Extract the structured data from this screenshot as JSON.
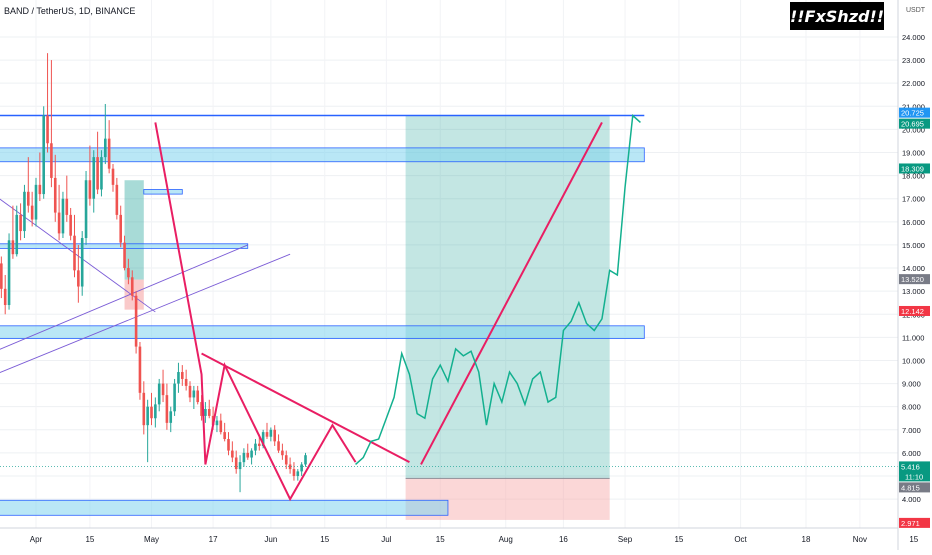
{
  "header": {
    "symbol_line": "BAND / TetherUS, 1D, BINANCE",
    "badge": "!!FxShzd!!",
    "currency": "USDT"
  },
  "colors": {
    "up": "#26a69a",
    "down": "#ef5350",
    "zone_fill": "#7fd3ee",
    "zone_stroke": "#2962ff",
    "pattern": "#e91e63",
    "projection": "#13b08f",
    "channel": "#7b5cd6",
    "level": "#2962ff"
  },
  "chart_data": {
    "type": "candlestick",
    "title": "BAND / TetherUS, 1D, BINANCE",
    "y_axis": {
      "unit": "USDT",
      "ticks": [
        4,
        5,
        6,
        7,
        8,
        9,
        10,
        11,
        12,
        13,
        14,
        15,
        16,
        17,
        18,
        19,
        20,
        21,
        22,
        23,
        24
      ],
      "tick_labels": [
        "4.000",
        "5.000",
        "6.000",
        "7.000",
        "8.000",
        "9.000",
        "10.000",
        "11.000",
        "12.000",
        "13.000",
        "14.000",
        "15.000",
        "16.000",
        "17.000",
        "18.000",
        "19.000",
        "20.000",
        "21.000",
        "22.000",
        "23.000",
        "24.000"
      ],
      "range": [
        2.75,
        25.6
      ]
    },
    "x_axis": {
      "labels": [
        "Apr",
        "15",
        "May",
        "17",
        "Jun",
        "15",
        "Jul",
        "15",
        "Aug",
        "16",
        "Sep",
        "15",
        "Oct",
        "18",
        "Nov",
        "15"
      ],
      "label_day_index": [
        0,
        14,
        30,
        46,
        61,
        75,
        91,
        105,
        122,
        137,
        153,
        167,
        183,
        200,
        214,
        228
      ]
    },
    "candles": [
      [
        10.8,
        11.5,
        10.7,
        11.3
      ],
      [
        11.3,
        13.2,
        11.0,
        12.8
      ],
      [
        12.8,
        14.6,
        12.5,
        14.2
      ],
      [
        14.2,
        14.5,
        12.7,
        13.1
      ],
      [
        13.1,
        13.7,
        12.0,
        12.4
      ],
      [
        12.4,
        15.5,
        12.2,
        15.2
      ],
      [
        15.2,
        16.7,
        14.4,
        14.6
      ],
      [
        14.6,
        16.7,
        14.5,
        16.3
      ],
      [
        16.3,
        16.8,
        15.2,
        15.6
      ],
      [
        15.6,
        17.6,
        15.3,
        17.3
      ],
      [
        17.3,
        18.8,
        16.4,
        16.7
      ],
      [
        16.7,
        17.3,
        15.8,
        16.1
      ],
      [
        16.1,
        17.9,
        15.8,
        17.6
      ],
      [
        17.6,
        19.0,
        16.9,
        17.2
      ],
      [
        17.2,
        21.0,
        17.0,
        20.6
      ],
      [
        20.6,
        23.3,
        19.0,
        19.4
      ],
      [
        19.4,
        23.0,
        17.5,
        17.9
      ],
      [
        17.9,
        18.9,
        16.0,
        16.4
      ],
      [
        16.4,
        17.6,
        15.2,
        15.5
      ],
      [
        15.5,
        17.3,
        15.3,
        17.0
      ],
      [
        17.0,
        18.0,
        16.0,
        16.3
      ],
      [
        16.3,
        16.6,
        15.2,
        15.4
      ],
      [
        15.4,
        16.3,
        13.6,
        13.9
      ],
      [
        13.9,
        15.0,
        12.5,
        13.2
      ],
      [
        13.2,
        15.6,
        12.8,
        15.3
      ],
      [
        15.3,
        18.2,
        15.0,
        17.8
      ],
      [
        17.8,
        19.3,
        16.7,
        17.0
      ],
      [
        17.0,
        19.1,
        16.4,
        18.8
      ],
      [
        18.8,
        19.9,
        17.2,
        17.4
      ],
      [
        17.4,
        19.1,
        17.1,
        18.8
      ],
      [
        18.8,
        21.1,
        18.5,
        19.6
      ],
      [
        19.6,
        20.4,
        18.1,
        18.3
      ],
      [
        18.3,
        18.5,
        17.3,
        17.6
      ],
      [
        17.6,
        17.9,
        16.1,
        16.3
      ],
      [
        16.3,
        16.7,
        14.9,
        15.1
      ],
      [
        15.1,
        15.4,
        13.9,
        14.0
      ],
      [
        14.0,
        14.4,
        13.3,
        13.6
      ],
      [
        13.6,
        13.9,
        12.6,
        12.8
      ],
      [
        12.8,
        13.0,
        10.3,
        10.6
      ],
      [
        10.6,
        10.8,
        8.3,
        8.6
      ],
      [
        8.6,
        9.1,
        6.8,
        7.2
      ],
      [
        7.2,
        8.3,
        5.6,
        8.0
      ],
      [
        8.0,
        8.6,
        7.2,
        7.5
      ],
      [
        7.5,
        8.4,
        7.1,
        8.1
      ],
      [
        8.1,
        9.2,
        7.8,
        9.0
      ],
      [
        9.0,
        9.6,
        8.2,
        8.5
      ],
      [
        8.5,
        9.0,
        7.0,
        7.3
      ],
      [
        7.3,
        8.0,
        6.9,
        7.8
      ],
      [
        7.8,
        9.2,
        7.6,
        9.0
      ],
      [
        9.0,
        9.9,
        8.6,
        9.5
      ],
      [
        9.5,
        9.8,
        8.9,
        9.2
      ],
      [
        9.2,
        9.6,
        8.7,
        8.9
      ],
      [
        8.9,
        9.1,
        8.2,
        8.4
      ],
      [
        8.4,
        8.9,
        7.9,
        8.7
      ],
      [
        8.7,
        8.9,
        8.1,
        8.2
      ],
      [
        8.2,
        8.5,
        7.4,
        7.6
      ],
      [
        7.6,
        8.2,
        7.3,
        7.9
      ],
      [
        7.9,
        8.3,
        7.5,
        7.6
      ],
      [
        7.6,
        8.0,
        7.0,
        7.2
      ],
      [
        7.2,
        7.6,
        6.9,
        7.4
      ],
      [
        7.4,
        7.7,
        6.8,
        6.9
      ],
      [
        6.9,
        7.3,
        6.5,
        6.6
      ],
      [
        6.6,
        6.9,
        5.9,
        6.1
      ],
      [
        6.1,
        6.5,
        5.6,
        5.8
      ],
      [
        5.8,
        6.1,
        5.1,
        5.3
      ],
      [
        5.3,
        5.9,
        4.3,
        5.6
      ],
      [
        5.6,
        6.2,
        5.4,
        6.0
      ],
      [
        6.0,
        6.4,
        5.7,
        5.8
      ],
      [
        5.8,
        6.2,
        5.5,
        6.1
      ],
      [
        6.1,
        6.6,
        5.9,
        6.4
      ],
      [
        6.4,
        6.8,
        6.1,
        6.3
      ],
      [
        6.3,
        7.0,
        6.2,
        6.9
      ],
      [
        6.9,
        7.3,
        6.6,
        6.7
      ],
      [
        6.7,
        7.1,
        6.5,
        7.0
      ],
      [
        7.0,
        7.2,
        6.3,
        6.5
      ],
      [
        6.5,
        6.8,
        6.0,
        6.1
      ],
      [
        6.1,
        6.4,
        5.7,
        5.9
      ],
      [
        5.9,
        6.1,
        5.3,
        5.5
      ],
      [
        5.5,
        5.8,
        5.1,
        5.3
      ],
      [
        5.3,
        5.6,
        4.8,
        5.0
      ],
      [
        5.0,
        5.3,
        4.8,
        5.2
      ],
      [
        5.2,
        5.6,
        5.0,
        5.5
      ],
      [
        5.5,
        6.0,
        5.4,
        5.9
      ]
    ],
    "projection_path": [
      [
        83,
        5.5
      ],
      [
        85,
        5.8
      ],
      [
        87,
        6.5
      ],
      [
        89,
        6.6
      ],
      [
        91,
        7.5
      ],
      [
        93,
        8.4
      ],
      [
        95,
        10.3
      ],
      [
        97,
        9.4
      ],
      [
        99,
        7.7
      ],
      [
        101,
        7.5
      ],
      [
        103,
        9.2
      ],
      [
        105,
        9.8
      ],
      [
        107,
        9.1
      ],
      [
        109,
        10.5
      ],
      [
        111,
        10.2
      ],
      [
        113,
        10.4
      ],
      [
        115,
        9.5
      ],
      [
        117,
        7.2
      ],
      [
        119,
        9.0
      ],
      [
        121,
        8.2
      ],
      [
        123,
        9.5
      ],
      [
        125,
        9.0
      ],
      [
        127,
        8.1
      ],
      [
        129,
        9.2
      ],
      [
        131,
        9.5
      ],
      [
        133,
        8.2
      ],
      [
        135,
        8.4
      ],
      [
        137,
        11.3
      ],
      [
        139,
        11.7
      ],
      [
        141,
        12.5
      ],
      [
        143,
        11.6
      ],
      [
        145,
        11.3
      ],
      [
        147,
        11.8
      ],
      [
        149,
        13.9
      ],
      [
        151,
        13.7
      ],
      [
        153,
        17.5
      ],
      [
        155,
        20.6
      ],
      [
        157,
        20.3
      ]
    ],
    "horizontal_zones": [
      {
        "x0": -12,
        "x1": 158,
        "y0": 20.6,
        "y1": 20.6,
        "kind": "line"
      },
      {
        "x0": -12,
        "x1": 158,
        "y0": 18.6,
        "y1": 19.2,
        "kind": "zone"
      },
      {
        "x0": 28,
        "x1": 38,
        "y0": 17.2,
        "y1": 17.4,
        "kind": "zone"
      },
      {
        "x0": -12,
        "x1": 55,
        "y0": 14.85,
        "y1": 15.05,
        "kind": "zone"
      },
      {
        "x0": -12,
        "x1": 158,
        "y0": 10.95,
        "y1": 11.5,
        "kind": "zone"
      },
      {
        "x0": -12,
        "x1": 107,
        "y0": 3.3,
        "y1": 3.95,
        "kind": "zone"
      }
    ],
    "pattern_lines": [
      [
        [
          31,
          20.3
        ],
        [
          43,
          9.4
        ],
        [
          44,
          5.5
        ],
        [
          49,
          9.8
        ],
        [
          66,
          4.0
        ],
        [
          77,
          7.2
        ],
        [
          83,
          5.6
        ]
      ],
      [
        [
          43,
          10.3
        ],
        [
          97,
          5.6
        ]
      ],
      [
        [
          100,
          5.5
        ],
        [
          147,
          20.3
        ]
      ]
    ],
    "channel_lines": [
      [
        [
          -12,
          17.3
        ],
        [
          31,
          12.1
        ]
      ],
      [
        [
          -12,
          10.3
        ],
        [
          55,
          15.0
        ]
      ],
      [
        [
          -12,
          9.3
        ],
        [
          66,
          14.6
        ]
      ]
    ],
    "position": {
      "x0": 96,
      "x1": 149,
      "entry": 4.9,
      "target": 20.6,
      "stop": 3.1
    },
    "mini_position": {
      "x0": 23,
      "x1": 28,
      "entry": 13.5,
      "target": 17.8,
      "stop": 12.2
    },
    "price_labels": [
      {
        "value": 20.725,
        "text": "20.725",
        "color": "#2196f3"
      },
      {
        "value": 20.695,
        "text": "20.695",
        "color": "#089981"
      },
      {
        "value": 18.309,
        "text": "18.309",
        "color": "#089981"
      },
      {
        "value": 13.52,
        "text": "13.520",
        "color": "#787b86"
      },
      {
        "value": 12.142,
        "text": "12.142",
        "color": "#f23645"
      },
      {
        "value": 5.416,
        "text": "5.416",
        "color": "#089981",
        "sub": "11:10"
      },
      {
        "value": 4.815,
        "text": "4.815",
        "color": "#787b86"
      },
      {
        "value": 2.971,
        "text": "2.971",
        "color": "#f23645"
      }
    ],
    "last_price": 5.416
  }
}
